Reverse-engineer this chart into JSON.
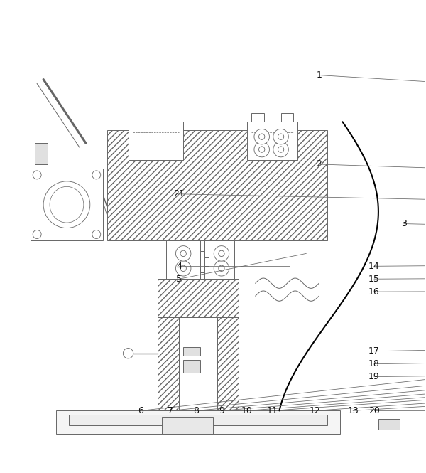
{
  "bg_color": "#ffffff",
  "line_color": "#666666",
  "label_color": "#111111",
  "label_fs": 9,
  "annotations": [
    [
      "1",
      75,
      88,
      175,
      82
    ],
    [
      "2",
      75,
      67,
      230,
      62
    ],
    [
      "3",
      95,
      53,
      228,
      50
    ],
    [
      "4",
      42,
      43,
      68,
      43
    ],
    [
      "5",
      42,
      40,
      72,
      46
    ],
    [
      "6",
      33,
      9,
      225,
      30
    ],
    [
      "7",
      40,
      9,
      255,
      30
    ],
    [
      "8",
      46,
      9,
      283,
      30
    ],
    [
      "9",
      52,
      9,
      310,
      30
    ],
    [
      "10",
      58,
      9,
      340,
      30
    ],
    [
      "11",
      64,
      9,
      365,
      30
    ],
    [
      "12",
      74,
      9,
      390,
      30
    ],
    [
      "13",
      83,
      9,
      440,
      30
    ],
    [
      "14",
      88,
      43,
      460,
      46
    ],
    [
      "15",
      88,
      40,
      455,
      42
    ],
    [
      "16",
      88,
      37,
      448,
      38
    ],
    [
      "17",
      88,
      23,
      365,
      28
    ],
    [
      "18",
      88,
      20,
      358,
      24
    ],
    [
      "19",
      88,
      17,
      350,
      20
    ],
    [
      "20",
      88,
      9,
      490,
      9
    ],
    [
      "21",
      42,
      60,
      228,
      56
    ]
  ]
}
